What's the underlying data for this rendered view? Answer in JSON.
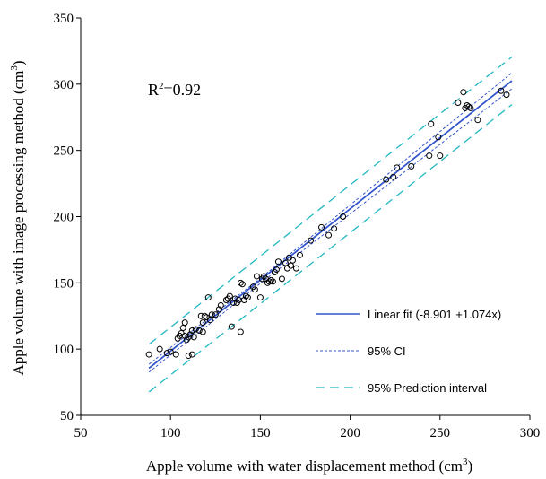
{
  "chart_data": {
    "type": "scatter",
    "xlabel": "Apple volume with water displacement  method (cm",
    "xlabel_sup": "3",
    "xlabel_tail": ")",
    "ylabel": "Apple volume with image processing method  (cm",
    "ylabel_sup": "3",
    "ylabel_tail": ")",
    "xlim": [
      50,
      300
    ],
    "ylim": [
      50,
      350
    ],
    "xticks": [
      50,
      100,
      150,
      200,
      250,
      300
    ],
    "yticks": [
      50,
      100,
      150,
      200,
      250,
      300,
      350
    ],
    "grid": false,
    "legend_position": "bottom-right",
    "annotation": {
      "prefix": "R",
      "sup": "2",
      "suffix": "=0.92"
    },
    "colors": {
      "points": "#000000",
      "fit": "#3355cc",
      "ci": "#3355cc",
      "prediction": "#22b8c2"
    },
    "series": [
      {
        "name": "Linear fit (-8.901  +1.074x)",
        "style": "solid",
        "intercept": -8.901,
        "slope": 1.074,
        "x": [
          88,
          290
        ],
        "y": [
          85.61,
          302.56
        ]
      },
      {
        "name": "95% CI",
        "style": "short-dash",
        "upper": {
          "x": [
            88,
            150,
            290
          ],
          "y": [
            88.6,
            153.4,
            308.6
          ]
        },
        "lower": {
          "x": [
            88,
            150,
            290
          ],
          "y": [
            82.6,
            149.6,
            296.5
          ]
        }
      },
      {
        "name": "95% Prediction interval",
        "style": "long-dash",
        "upper": {
          "x": [
            88,
            290
          ],
          "y": [
            103.6,
            320.6
          ]
        },
        "lower": {
          "x": [
            88,
            290
          ],
          "y": [
            67.6,
            284.6
          ]
        }
      }
    ],
    "points": {
      "x": [
        88,
        94,
        98,
        100,
        103,
        104,
        105,
        106,
        107,
        108,
        108,
        109,
        110,
        110,
        111,
        112,
        112,
        113,
        114,
        116,
        117,
        118,
        118,
        119,
        120,
        121,
        122,
        123,
        125,
        127,
        128,
        131,
        132,
        133,
        134,
        135,
        136,
        137,
        138,
        139,
        139,
        140,
        141,
        142,
        143,
        146,
        147,
        148,
        150,
        151,
        152,
        153,
        154,
        155,
        156,
        157,
        158,
        159,
        160,
        162,
        164,
        165,
        166,
        167,
        168,
        170,
        172,
        178,
        184,
        188,
        191,
        196,
        220,
        224,
        226,
        234,
        244,
        245,
        249,
        250,
        260,
        263,
        264,
        265,
        266,
        267,
        271,
        284,
        287
      ],
      "y": [
        96,
        100,
        97,
        98,
        96,
        108,
        110,
        112,
        116,
        120,
        110,
        107,
        95,
        109,
        111,
        114,
        96,
        109,
        115,
        114,
        125,
        113,
        120,
        125,
        124,
        139,
        122,
        126,
        126,
        130,
        133,
        137,
        138,
        140,
        117,
        135,
        138,
        135,
        137,
        113,
        150,
        149,
        137,
        140,
        139,
        147,
        145,
        155,
        139,
        153,
        155,
        153,
        150,
        151,
        152,
        151,
        158,
        160,
        166,
        153,
        165,
        161,
        169,
        163,
        167,
        161,
        171,
        182,
        192,
        186,
        191,
        200,
        228,
        230,
        237,
        238,
        246,
        270,
        260,
        246,
        286,
        294,
        282,
        284,
        283,
        282,
        273,
        295,
        292
      ]
    }
  }
}
